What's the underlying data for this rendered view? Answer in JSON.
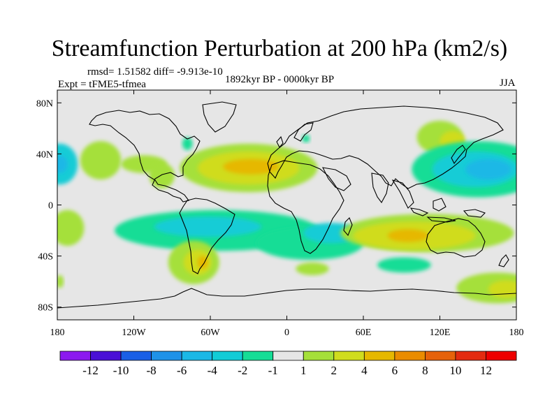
{
  "title": "Streamfunction Perturbation at 200 hPa (km2/s)",
  "stats": "rmsd= 1.51582 diff= -9.913e-10",
  "experiment": "Expt = tFME5-tfmea",
  "period": "1892kyr BP - 0000kyr BP",
  "season": "JJA",
  "map": {
    "lon_range": [
      -180,
      180
    ],
    "lat_range": [
      -90,
      90
    ],
    "x_ticks": [
      {
        "lon": -180,
        "label": "180"
      },
      {
        "lon": -120,
        "label": "120W"
      },
      {
        "lon": -60,
        "label": "60W"
      },
      {
        "lon": 0,
        "label": "0"
      },
      {
        "lon": 60,
        "label": "60E"
      },
      {
        "lon": 120,
        "label": "120E"
      },
      {
        "lon": 180,
        "label": "180"
      }
    ],
    "y_ticks": [
      {
        "lat": 80,
        "label": "80N"
      },
      {
        "lat": 40,
        "label": "40N"
      },
      {
        "lat": 0,
        "label": "0"
      },
      {
        "lat": -40,
        "label": "40S"
      },
      {
        "lat": -80,
        "label": "80S"
      }
    ],
    "background_color": "#e6e6e6",
    "blobs": [
      {
        "lon": -178,
        "lat": 32,
        "rx": 14,
        "ry": 16,
        "level": -3
      },
      {
        "lon": -178,
        "lat": 32,
        "rx": 6,
        "ry": 7,
        "level": -5
      },
      {
        "lon": -172,
        "lat": -18,
        "rx": 13,
        "ry": 14,
        "level": 1.5
      },
      {
        "lon": -178,
        "lat": -60,
        "rx": 3,
        "ry": 5,
        "level": 1.5
      },
      {
        "lon": -146,
        "lat": 35,
        "rx": 16,
        "ry": 15,
        "level": 1.5
      },
      {
        "lon": -112,
        "lat": 32,
        "rx": 18,
        "ry": 7,
        "level": 1.5
      },
      {
        "lon": -98,
        "lat": 23,
        "rx": 10,
        "ry": 10,
        "level": 1.5
      },
      {
        "lon": -78,
        "lat": 48,
        "rx": 4,
        "ry": 5,
        "level": -1.5
      },
      {
        "lon": -30,
        "lat": 29,
        "rx": 54,
        "ry": 19,
        "level": 1.5
      },
      {
        "lon": -30,
        "lat": 29,
        "rx": 40,
        "ry": 13,
        "level": 3
      },
      {
        "lon": -28,
        "lat": 30,
        "rx": 22,
        "ry": 6,
        "level": 5
      },
      {
        "lon": 15,
        "lat": 52,
        "rx": 3,
        "ry": 3,
        "level": -1.5
      },
      {
        "lon": 120,
        "lat": 53,
        "rx": 18,
        "ry": 13,
        "level": 1.5
      },
      {
        "lon": 130,
        "lat": 50,
        "rx": 10,
        "ry": 8,
        "level": 3
      },
      {
        "lon": 150,
        "lat": 28,
        "rx": 52,
        "ry": 22,
        "level": -1.5
      },
      {
        "lon": 148,
        "lat": 28,
        "rx": 34,
        "ry": 14,
        "level": -3
      },
      {
        "lon": 158,
        "lat": 28,
        "rx": 18,
        "ry": 8,
        "level": -5
      },
      {
        "lon": -55,
        "lat": -20,
        "rx": 80,
        "ry": 16,
        "level": -1.5
      },
      {
        "lon": -62,
        "lat": -17,
        "rx": 42,
        "ry": 8,
        "level": -3
      },
      {
        "lon": 18,
        "lat": -30,
        "rx": 42,
        "ry": 13,
        "level": -1.5
      },
      {
        "lon": 35,
        "lat": -22,
        "rx": 22,
        "ry": 8,
        "level": -3
      },
      {
        "lon": 110,
        "lat": -22,
        "rx": 68,
        "ry": 15,
        "level": 1.5
      },
      {
        "lon": 100,
        "lat": -24,
        "rx": 48,
        "ry": 11,
        "level": 3
      },
      {
        "lon": 95,
        "lat": -24,
        "rx": 16,
        "ry": 5,
        "level": 5
      },
      {
        "lon": -73,
        "lat": -45,
        "rx": 20,
        "ry": 17,
        "level": 1.5
      },
      {
        "lon": -70,
        "lat": -45,
        "rx": 11,
        "ry": 10,
        "level": 3
      },
      {
        "lon": -66,
        "lat": -45,
        "rx": 4,
        "ry": 5,
        "level": 5
      },
      {
        "lon": 20,
        "lat": -50,
        "rx": 13,
        "ry": 5,
        "level": 1.5
      },
      {
        "lon": 92,
        "lat": -47,
        "rx": 21,
        "ry": 6,
        "level": -1.5
      },
      {
        "lon": 165,
        "lat": -65,
        "rx": 32,
        "ry": 12,
        "level": 1.5
      },
      {
        "lon": 172,
        "lat": -66,
        "rx": 14,
        "ry": 7,
        "level": 3
      }
    ]
  },
  "colorbar": {
    "colors": [
      "#8c1aef",
      "#4a10d6",
      "#1a5fe6",
      "#1f92e8",
      "#1bb8e6",
      "#12ccd6",
      "#16dd96",
      "#e6e6e6",
      "#a5e03a",
      "#d0dc1e",
      "#e6b800",
      "#ea8c00",
      "#e6620a",
      "#e32b10",
      "#ee0000"
    ],
    "labels": [
      "-12",
      "-10",
      "-8",
      "-6",
      "-4",
      "-2",
      "-1",
      "1",
      "2",
      "4",
      "6",
      "8",
      "10",
      "12"
    ]
  }
}
